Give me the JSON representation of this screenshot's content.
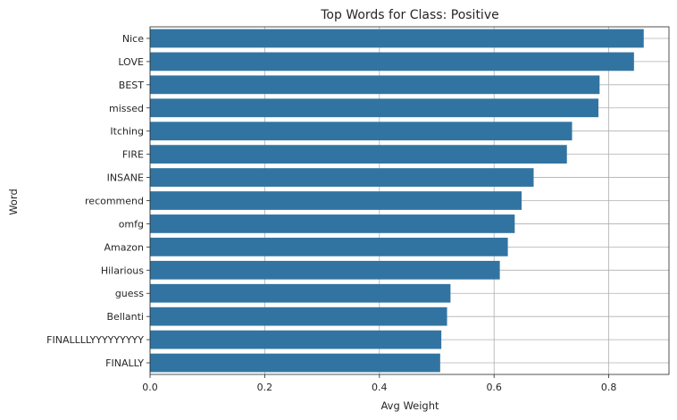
{
  "chart_data": {
    "type": "bar",
    "orientation": "horizontal",
    "title": "Top Words for Class: Positive",
    "xlabel": "Avg Weight",
    "ylabel": "Word",
    "categories": [
      "Nice",
      "LOVE",
      "BEST",
      "missed",
      "Itching",
      "FIRE",
      "INSANE",
      "recommend",
      "omfg",
      "Amazon",
      "Hilarious",
      "guess",
      "Bellanti",
      "FINALLLLYYYYYYYYY",
      "FINALLY"
    ],
    "values": [
      0.861,
      0.844,
      0.784,
      0.782,
      0.736,
      0.727,
      0.669,
      0.648,
      0.636,
      0.624,
      0.61,
      0.524,
      0.518,
      0.508,
      0.506
    ],
    "xlim": [
      0,
      0.905
    ],
    "xticks": [
      0.0,
      0.2,
      0.4,
      0.6,
      0.8
    ],
    "xtick_labels": [
      "0.0",
      "0.2",
      "0.4",
      "0.6",
      "0.8"
    ],
    "grid": true,
    "bar_color": "#3274a1",
    "grid_color": "#b0b0b0"
  }
}
